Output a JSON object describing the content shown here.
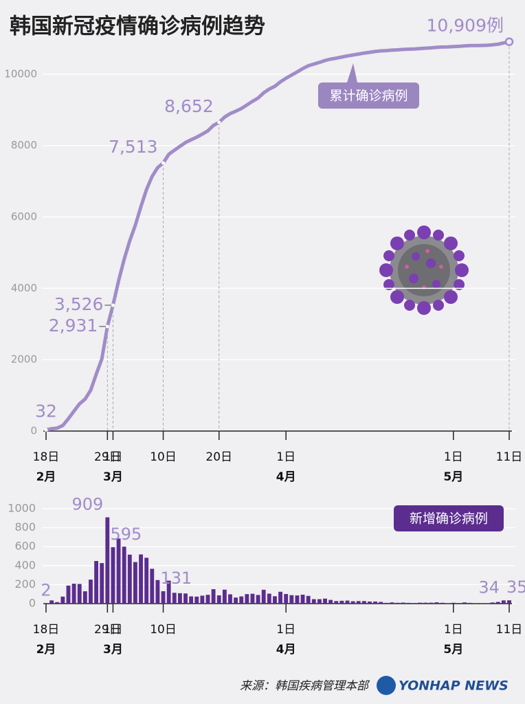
{
  "title": "韩国新冠疫情确诊病例趋势",
  "source": "来源：韩国疾病管理本部",
  "logo": "YONHAP NEWS",
  "chart_data": [
    {
      "type": "line",
      "categories": [
        "18日",
        null,
        null,
        null,
        null,
        null,
        null,
        null,
        null,
        null,
        null,
        "29日",
        "1日",
        null,
        null,
        null,
        null,
        null,
        null,
        null,
        null,
        "10日",
        null,
        null,
        null,
        null,
        null,
        null,
        null,
        null,
        null,
        "20日",
        null,
        null,
        null,
        null,
        null,
        null,
        null,
        null,
        null,
        null,
        null,
        "1日",
        null,
        null,
        null,
        null,
        null,
        null,
        null,
        null,
        null,
        null,
        null,
        null,
        null,
        null,
        null,
        null,
        null,
        null,
        null,
        null,
        null,
        null,
        null,
        null,
        null,
        null,
        null,
        null,
        null,
        "1日",
        null,
        null,
        null,
        null,
        null,
        null,
        null,
        null,
        null,
        "11日"
      ],
      "months": [
        "2月",
        null,
        null,
        null,
        null,
        null,
        null,
        null,
        null,
        null,
        null,
        null,
        "3月",
        null,
        null,
        null,
        null,
        null,
        null,
        null,
        null,
        null,
        null,
        null,
        null,
        null,
        null,
        null,
        null,
        null,
        null,
        null,
        null,
        null,
        null,
        null,
        null,
        null,
        null,
        null,
        null,
        null,
        null,
        "4月",
        null,
        null,
        null,
        null,
        null,
        null,
        null,
        null,
        null,
        null,
        null,
        null,
        null,
        null,
        null,
        null,
        null,
        null,
        null,
        null,
        null,
        null,
        null,
        null,
        null,
        null,
        null,
        null,
        null,
        "5月",
        null,
        null,
        null,
        null,
        null,
        null,
        null,
        null,
        null,
        null
      ],
      "series": [
        {
          "name": "累计确诊病例",
          "color": "#a08cc8",
          "values": [
            32,
            66,
            82,
            156,
            346,
            556,
            763,
            893,
            1146,
            1595,
            2022,
            2931,
            3526,
            4212,
            4812,
            5328,
            5766,
            6284,
            6767,
            7134,
            7382,
            7513,
            7755,
            7869,
            7979,
            8086,
            8162,
            8236,
            8320,
            8413,
            8565,
            8652,
            8799,
            8897,
            8961,
            9037,
            9137,
            9241,
            9332,
            9478,
            9583,
            9661,
            9786,
            9887,
            9976,
            10062,
            10156,
            10237,
            10284,
            10331,
            10384,
            10423,
            10450,
            10480,
            10512,
            10537,
            10564,
            10591,
            10613,
            10635,
            10653,
            10661,
            10674,
            10683,
            10694,
            10702,
            10708,
            10718,
            10728,
            10738,
            10752,
            10761,
            10765,
            10774,
            10780,
            10793,
            10801,
            10804,
            10806,
            10810,
            10822,
            10840,
            10874,
            10909
          ],
          "value_labels": [
            "32",
            null,
            null,
            null,
            null,
            null,
            null,
            null,
            null,
            null,
            null,
            "2,931",
            "3,526",
            null,
            null,
            null,
            null,
            null,
            null,
            null,
            null,
            "7,513",
            null,
            null,
            null,
            null,
            null,
            null,
            null,
            null,
            null,
            "8,652",
            null,
            null,
            null,
            null,
            null,
            null,
            null,
            null,
            null,
            null,
            null,
            null,
            null,
            null,
            null,
            null,
            null,
            null,
            null,
            null,
            null,
            null,
            null,
            null,
            null,
            null,
            null,
            null,
            null,
            null,
            null,
            null,
            null,
            null,
            null,
            null,
            null,
            null,
            null,
            null,
            null,
            null,
            null,
            null,
            null,
            null,
            null,
            null,
            null,
            null,
            null,
            "10,909例"
          ]
        }
      ],
      "ylim": [
        0,
        11000
      ],
      "yticks": [
        0,
        2000,
        4000,
        6000,
        8000,
        10000
      ],
      "grid": true
    },
    {
      "type": "bar",
      "categories": [
        "18日",
        null,
        null,
        null,
        null,
        null,
        null,
        null,
        null,
        null,
        null,
        "29日",
        "1日",
        null,
        null,
        null,
        null,
        null,
        null,
        null,
        null,
        "10日",
        null,
        null,
        null,
        null,
        null,
        null,
        null,
        null,
        null,
        null,
        null,
        null,
        null,
        null,
        null,
        null,
        null,
        null,
        null,
        null,
        null,
        "1日",
        null,
        null,
        null,
        null,
        null,
        null,
        null,
        null,
        null,
        null,
        null,
        null,
        null,
        null,
        null,
        null,
        null,
        null,
        null,
        null,
        null,
        null,
        null,
        null,
        null,
        null,
        null,
        null,
        null,
        "1日",
        null,
        null,
        null,
        null,
        null,
        null,
        null,
        null,
        null,
        "11日"
      ],
      "months": [
        "2月",
        null,
        null,
        null,
        null,
        null,
        null,
        null,
        null,
        null,
        null,
        null,
        "3月",
        null,
        null,
        null,
        null,
        null,
        null,
        null,
        null,
        null,
        null,
        null,
        null,
        null,
        null,
        null,
        null,
        null,
        null,
        null,
        null,
        null,
        null,
        null,
        null,
        null,
        null,
        null,
        null,
        null,
        null,
        "4月",
        null,
        null,
        null,
        null,
        null,
        null,
        null,
        null,
        null,
        null,
        null,
        null,
        null,
        null,
        null,
        null,
        null,
        null,
        null,
        null,
        null,
        null,
        null,
        null,
        null,
        null,
        null,
        null,
        null,
        "5月",
        null,
        null,
        null,
        null,
        null,
        null,
        null,
        null,
        null,
        null
      ],
      "series": [
        {
          "name": "新增确诊病例",
          "color": "#5b2d8e",
          "values": [
            2,
            34,
            16,
            74,
            190,
            210,
            207,
            130,
            253,
            449,
            427,
            909,
            595,
            686,
            600,
            516,
            438,
            518,
            483,
            367,
            248,
            131,
            242,
            114,
            110,
            107,
            76,
            74,
            84,
            93,
            152,
            87,
            147,
            98,
            64,
            76,
            100,
            104,
            91,
            146,
            105,
            78,
            125,
            101,
            89,
            86,
            94,
            81,
            47,
            47,
            53,
            39,
            27,
            30,
            32,
            25,
            27,
            27,
            22,
            22,
            18,
            8,
            13,
            9,
            11,
            8,
            6,
            10,
            10,
            10,
            14,
            9,
            4,
            9,
            6,
            13,
            8,
            3,
            2,
            4,
            12,
            18,
            34,
            35
          ],
          "value_labels": [
            "2",
            null,
            null,
            null,
            null,
            null,
            null,
            null,
            null,
            null,
            null,
            "909",
            "595",
            null,
            null,
            null,
            null,
            null,
            null,
            null,
            null,
            "131",
            null,
            null,
            null,
            null,
            null,
            null,
            null,
            null,
            null,
            null,
            null,
            null,
            null,
            null,
            null,
            null,
            null,
            null,
            null,
            null,
            null,
            null,
            null,
            null,
            null,
            null,
            null,
            null,
            null,
            null,
            null,
            null,
            null,
            null,
            null,
            null,
            null,
            null,
            null,
            null,
            null,
            null,
            null,
            null,
            null,
            null,
            null,
            null,
            null,
            null,
            null,
            null,
            null,
            null,
            null,
            null,
            null,
            null,
            null,
            null,
            "34",
            "35"
          ]
        }
      ],
      "ylim": [
        0,
        1050
      ],
      "yticks": [
        0,
        200,
        400,
        600,
        800,
        1000
      ],
      "grid": true
    }
  ]
}
